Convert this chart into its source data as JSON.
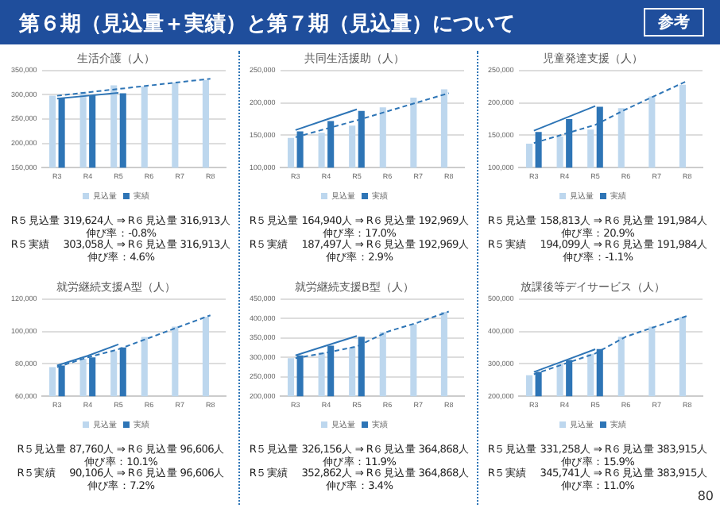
{
  "chart_data": [
    {
      "type": "other",
      "title": "第６期（見込量＋実績）と第７期（見込量）について",
      "annotations": [
        "参考",
        "80"
      ]
    },
    {
      "type": "bar",
      "title": "生活介護（人）",
      "categories": [
        "R3",
        "R4",
        "R5",
        "R6",
        "R7",
        "R8"
      ],
      "legend": "bottom",
      "grid": "y",
      "ylim": [
        150000,
        350000
      ],
      "yticks": [
        {
          "value": 150000,
          "label": "150,000"
        },
        {
          "value": 200000,
          "label": "200,000"
        },
        {
          "value": 250000,
          "label": "250,000"
        },
        {
          "value": 300000,
          "label": "300,000"
        },
        {
          "value": 350000,
          "label": "350,000"
        }
      ],
      "series": [
        {
          "name": "見込量",
          "color": "#bdd7ee",
          "values": [
            298000,
            306000,
            319624,
            316913,
            325000,
            330000
          ]
        },
        {
          "name": "実績",
          "color": "#2e75b6",
          "values": [
            294000,
            299000,
            303058,
            null,
            null,
            null
          ]
        },
        {
          "type": "line",
          "color": "#2e75b6",
          "line_style": "solid",
          "values": [
            292000,
            298000,
            304000,
            null,
            null,
            null
          ]
        },
        {
          "type": "line",
          "color": "#2e75b6",
          "line_style": "dashed",
          "values": [
            298000,
            305000,
            312000,
            319000,
            326000,
            333000
          ]
        }
      ],
      "annotations": [
        "R５見込量 319,624人 ⇒ R６見込量 316,913人",
        "伸び率：-0.8%",
        "R５実績　 303,058人 ⇒ R６見込量 316,913人",
        "伸び率：4.6%"
      ]
    },
    {
      "type": "bar",
      "title": "共同生活援助（人）",
      "categories": [
        "R3",
        "R4",
        "R5",
        "R6",
        "R7",
        "R8"
      ],
      "legend": "bottom",
      "grid": "y",
      "ylim": [
        100000,
        250000
      ],
      "yticks": [
        {
          "value": 100000,
          "label": "100,000"
        },
        {
          "value": 150000,
          "label": "150,000"
        },
        {
          "value": 200000,
          "label": "200,000"
        },
        {
          "value": 250000,
          "label": "250,000"
        }
      ],
      "series": [
        {
          "name": "見込量",
          "color": "#bdd7ee",
          "values": [
            146000,
            154000,
            164940,
            192969,
            208000,
            221000
          ]
        },
        {
          "name": "実績",
          "color": "#2e75b6",
          "values": [
            156000,
            172000,
            187497,
            null,
            null,
            null
          ]
        },
        {
          "type": "line",
          "color": "#2e75b6",
          "line_style": "solid",
          "values": [
            158000,
            174000,
            190000,
            null,
            null,
            null
          ]
        },
        {
          "type": "line",
          "color": "#2e75b6",
          "line_style": "dashed",
          "values": [
            147000,
            160000,
            173000,
            187000,
            201000,
            215000
          ]
        }
      ],
      "annotations": [
        "R５見込量 164,940人 ⇒ R６見込量 192,969人",
        "伸び率：17.0%",
        "R５実績　 187,497人 ⇒ R６見込量 192,969人",
        "伸び率：2.9%"
      ]
    },
    {
      "type": "bar",
      "title": "児童発達支援（人）",
      "categories": [
        "R3",
        "R4",
        "R5",
        "R6",
        "R7",
        "R8"
      ],
      "legend": "bottom",
      "grid": "y",
      "ylim": [
        100000,
        250000
      ],
      "yticks": [
        {
          "value": 100000,
          "label": "100,000"
        },
        {
          "value": 150000,
          "label": "150,000"
        },
        {
          "value": 200000,
          "label": "200,000"
        },
        {
          "value": 250000,
          "label": "250,000"
        }
      ],
      "series": [
        {
          "name": "見込量",
          "color": "#bdd7ee",
          "values": [
            137000,
            148000,
            158813,
            191984,
            210000,
            228000
          ]
        },
        {
          "name": "実績",
          "color": "#2e75b6",
          "values": [
            155000,
            175000,
            194099,
            null,
            null,
            null
          ]
        },
        {
          "type": "line",
          "color": "#2e75b6",
          "line_style": "solid",
          "values": [
            157000,
            176000,
            195000,
            null,
            null,
            null
          ]
        },
        {
          "type": "line",
          "color": "#2e75b6",
          "line_style": "dashed",
          "values": [
            138000,
            152000,
            166000,
            190000,
            212000,
            234000
          ]
        }
      ],
      "annotations": [
        "R５見込量 158,813人 ⇒ R６見込量 191,984人",
        "伸び率：20.9%",
        "R５実績　 194,099人 ⇒ R６見込量 191,984人",
        "伸び率：-1.1%"
      ]
    },
    {
      "type": "bar",
      "title": "就労継続支援A型（人）",
      "categories": [
        "R3",
        "R4",
        "R5",
        "R6",
        "R7",
        "R8"
      ],
      "legend": "bottom",
      "grid": "y",
      "ylim": [
        60000,
        120000
      ],
      "yticks": [
        {
          "value": 60000,
          "label": "60,000"
        },
        {
          "value": 80000,
          "label": "80,000"
        },
        {
          "value": 100000,
          "label": "100,000"
        },
        {
          "value": 120000,
          "label": "120,000"
        }
      ],
      "series": [
        {
          "name": "見込量",
          "color": "#bdd7ee",
          "values": [
            78000,
            83000,
            87760,
            96606,
            103000,
            109000
          ]
        },
        {
          "name": "実績",
          "color": "#2e75b6",
          "values": [
            79000,
            84000,
            90106,
            null,
            null,
            null
          ]
        },
        {
          "type": "line",
          "color": "#2e75b6",
          "line_style": "solid",
          "values": [
            79000,
            85000,
            92000,
            null,
            null,
            null
          ]
        },
        {
          "type": "line",
          "color": "#2e75b6",
          "line_style": "dashed",
          "values": [
            78000,
            84000,
            89000,
            96000,
            103000,
            110000
          ]
        }
      ],
      "annotations": [
        "R５見込量 87,760人 ⇒ R６見込量 96,606人",
        "伸び率：10.1%",
        "R５実績　 90,106人 ⇒ R６見込量 96,606人",
        "伸び率：7.2%"
      ]
    },
    {
      "type": "bar",
      "title": "就労継続支援B型（人）",
      "categories": [
        "R3",
        "R4",
        "R5",
        "R6",
        "R7",
        "R8"
      ],
      "legend": "bottom",
      "grid": "y",
      "ylim": [
        200000,
        450000
      ],
      "yticks": [
        {
          "value": 200000,
          "label": "200,000"
        },
        {
          "value": 250000,
          "label": "250,000"
        },
        {
          "value": 300000,
          "label": "300,000"
        },
        {
          "value": 350000,
          "label": "350,000"
        },
        {
          "value": 400000,
          "label": "400,000"
        },
        {
          "value": 450000,
          "label": "450,000"
        }
      ],
      "series": [
        {
          "name": "見込量",
          "color": "#bdd7ee",
          "values": [
            298000,
            312000,
            326156,
            364868,
            385000,
            417000
          ]
        },
        {
          "name": "実績",
          "color": "#2e75b6",
          "values": [
            305000,
            330000,
            352862,
            null,
            null,
            null
          ]
        },
        {
          "type": "line",
          "color": "#2e75b6",
          "line_style": "solid",
          "values": [
            305000,
            330000,
            355000,
            null,
            null,
            null
          ]
        },
        {
          "type": "line",
          "color": "#2e75b6",
          "line_style": "dashed",
          "values": [
            298000,
            312000,
            328000,
            366000,
            390000,
            418000
          ]
        }
      ],
      "annotations": [
        "R５見込量 326,156人 ⇒ R６見込量 364,868人",
        "伸び率：11.9%",
        "R５実績　 352,862人 ⇒ R６見込量 364,868人",
        "伸び率：3.4%"
      ]
    },
    {
      "type": "bar",
      "title": "放課後等デイサービス（人）",
      "categories": [
        "R3",
        "R4",
        "R5",
        "R6",
        "R7",
        "R8"
      ],
      "legend": "bottom",
      "grid": "y",
      "ylim": [
        200000,
        500000
      ],
      "yticks": [
        {
          "value": 200000,
          "label": "200,000"
        },
        {
          "value": 300000,
          "label": "300,000"
        },
        {
          "value": 400000,
          "label": "400,000"
        },
        {
          "value": 500000,
          "label": "500,000"
        }
      ],
      "series": [
        {
          "name": "見込量",
          "color": "#bdd7ee",
          "values": [
            265000,
            300000,
            331258,
            383915,
            415000,
            445000
          ]
        },
        {
          "name": "実績",
          "color": "#2e75b6",
          "values": [
            275000,
            312000,
            345741,
            null,
            null,
            null
          ]
        },
        {
          "type": "line",
          "color": "#2e75b6",
          "line_style": "solid",
          "values": [
            275000,
            310000,
            345000,
            null,
            null,
            null
          ]
        },
        {
          "type": "line",
          "color": "#2e75b6",
          "line_style": "dashed",
          "values": [
            268000,
            300000,
            332000,
            384000,
            416000,
            448000
          ]
        }
      ],
      "annotations": [
        "R５見込量 331,258人 ⇒ R６見込量 383,915人",
        "伸び率：15.9%",
        "R５実績　 345,741人 ⇒ R６見込量 383,915人",
        "伸び率：11.0%"
      ]
    }
  ]
}
